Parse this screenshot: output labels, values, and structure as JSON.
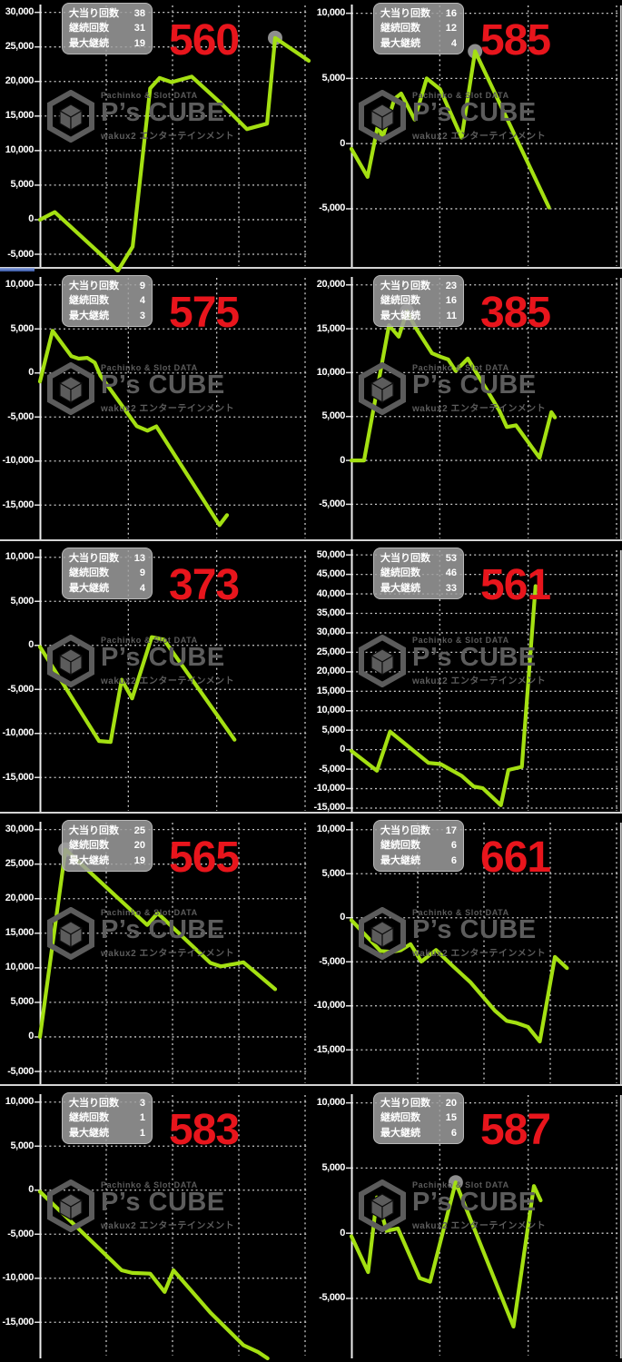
{
  "page": {
    "background": "#000000"
  },
  "watermark": {
    "top": "Pachinko & Slot DATA",
    "brand": "P’s CUBE",
    "sub": "wakux2 エンターテインメント"
  },
  "stats_labels": {
    "jackpot_count": "大当り回数",
    "continuation_count": "継続回数",
    "max_continuation": "最大継続"
  },
  "colors": {
    "line": "#a4e012",
    "machine_number": "#e8151c",
    "grid": "#c8c8c8",
    "axis": "#ededed",
    "marker": "#8e8e8e",
    "watermark": "#5c5c5c",
    "stats_box_bg": "rgba(158,158,158,0.85)",
    "indicator": "#4f6fc0"
  },
  "chart_data": [
    {
      "type": "line",
      "machine_no": "560",
      "stats": {
        "jackpot_count": 38,
        "continuation_count": 31,
        "max_continuation": 19
      },
      "y_axis": {
        "label_max": 30000,
        "label_min": -5000,
        "step": 5000
      },
      "ylim": [
        -7100,
        31000
      ],
      "vgrid_segments": 4,
      "marker_index": 12,
      "points": [
        [
          0.0,
          0
        ],
        [
          0.055,
          1100
        ],
        [
          0.24,
          -5500
        ],
        [
          0.29,
          -7400
        ],
        [
          0.345,
          -3900
        ],
        [
          0.41,
          19000
        ],
        [
          0.445,
          20500
        ],
        [
          0.49,
          19900
        ],
        [
          0.565,
          20700
        ],
        [
          0.68,
          16600
        ],
        [
          0.77,
          13100
        ],
        [
          0.845,
          13900
        ],
        [
          0.875,
          26300
        ],
        [
          1.0,
          23000
        ]
      ]
    },
    {
      "type": "line",
      "machine_no": "585",
      "stats": {
        "jackpot_count": 16,
        "continuation_count": 12,
        "max_continuation": 4
      },
      "y_axis": {
        "label_max": 10000,
        "label_min": -5000,
        "step": 5000
      },
      "ylim": [
        -9600,
        10600
      ],
      "vgrid_segments": 3,
      "marker_index": 10,
      "points": [
        [
          0.0,
          -400
        ],
        [
          0.06,
          -2550
        ],
        [
          0.1,
          1570
        ],
        [
          0.115,
          370
        ],
        [
          0.16,
          3430
        ],
        [
          0.185,
          3840
        ],
        [
          0.235,
          1850
        ],
        [
          0.28,
          5000
        ],
        [
          0.33,
          4170
        ],
        [
          0.41,
          460
        ],
        [
          0.46,
          7080
        ],
        [
          0.735,
          -4900
        ]
      ]
    },
    {
      "type": "line",
      "machine_no": "575",
      "stats": {
        "jackpot_count": 9,
        "continuation_count": 4,
        "max_continuation": 3
      },
      "y_axis": {
        "label_max": 10000,
        "label_min": -15000,
        "step": 5000
      },
      "ylim": [
        -19100,
        10800
      ],
      "vgrid_segments": 3,
      "marker_index": null,
      "points": [
        [
          0.0,
          -970
        ],
        [
          0.047,
          4790
        ],
        [
          0.117,
          1900
        ],
        [
          0.144,
          1620
        ],
        [
          0.176,
          1720
        ],
        [
          0.204,
          1170
        ],
        [
          0.225,
          -300
        ],
        [
          0.36,
          -6040
        ],
        [
          0.4,
          -6550
        ],
        [
          0.433,
          -6070
        ],
        [
          0.668,
          -17280
        ],
        [
          0.696,
          -16140
        ]
      ]
    },
    {
      "type": "line",
      "machine_no": "385",
      "stats": {
        "jackpot_count": 23,
        "continuation_count": 16,
        "max_continuation": 11
      },
      "y_axis": {
        "label_max": 20000,
        "label_min": -5000,
        "step": 5000
      },
      "ylim": [
        -9200,
        20800
      ],
      "vgrid_segments": 3,
      "marker_index": 4,
      "points": [
        [
          0.0,
          0
        ],
        [
          0.047,
          0
        ],
        [
          0.14,
          15400
        ],
        [
          0.176,
          14100
        ],
        [
          0.207,
          17000
        ],
        [
          0.237,
          15200
        ],
        [
          0.3,
          12200
        ],
        [
          0.332,
          11800
        ],
        [
          0.36,
          11500
        ],
        [
          0.388,
          10200
        ],
        [
          0.433,
          11600
        ],
        [
          0.55,
          5700
        ],
        [
          0.578,
          3800
        ],
        [
          0.612,
          4000
        ],
        [
          0.7,
          300
        ],
        [
          0.744,
          5500
        ],
        [
          0.757,
          4900
        ]
      ]
    },
    {
      "type": "line",
      "machine_no": "373",
      "stats": {
        "jackpot_count": 13,
        "continuation_count": 9,
        "max_continuation": 4
      },
      "y_axis": {
        "label_max": 10000,
        "label_min": -15000,
        "step": 5000
      },
      "ylim": [
        -19100,
        10800
      ],
      "vgrid_segments": 3,
      "marker_index": null,
      "points": [
        [
          0.0,
          -170
        ],
        [
          0.22,
          -10860
        ],
        [
          0.263,
          -10960
        ],
        [
          0.304,
          -3900
        ],
        [
          0.343,
          -6030
        ],
        [
          0.416,
          930
        ],
        [
          0.461,
          650
        ],
        [
          0.724,
          -10720
        ]
      ]
    },
    {
      "type": "line",
      "machine_no": "561",
      "stats": {
        "jackpot_count": 53,
        "continuation_count": 46,
        "max_continuation": 33
      },
      "y_axis": {
        "label_max": 50000,
        "label_min": -15000,
        "step": 5000
      },
      "ylim": [
        -16400,
        51200
      ],
      "vgrid_segments": 3,
      "marker_index": null,
      "points": [
        [
          0.0,
          -310
        ],
        [
          0.095,
          -5400
        ],
        [
          0.144,
          4650
        ],
        [
          0.287,
          -3400
        ],
        [
          0.332,
          -3700
        ],
        [
          0.41,
          -6700
        ],
        [
          0.455,
          -9450
        ],
        [
          0.489,
          -9900
        ],
        [
          0.556,
          -14260
        ],
        [
          0.584,
          -5200
        ],
        [
          0.634,
          -4400
        ],
        [
          0.685,
          42000
        ]
      ]
    },
    {
      "type": "line",
      "machine_no": "565",
      "stats": {
        "jackpot_count": 25,
        "continuation_count": 20,
        "max_continuation": 19
      },
      "y_axis": {
        "label_max": 30000,
        "label_min": -5000,
        "step": 5000
      },
      "ylim": [
        -7100,
        31000
      ],
      "vgrid_segments": 4,
      "marker_index": 1,
      "points": [
        [
          0.0,
          0
        ],
        [
          0.095,
          27100
        ],
        [
          0.399,
          16200
        ],
        [
          0.438,
          17900
        ],
        [
          0.634,
          10700
        ],
        [
          0.673,
          10200
        ],
        [
          0.757,
          10800
        ],
        [
          0.875,
          6900
        ]
      ]
    },
    {
      "type": "line",
      "machine_no": "661",
      "stats": {
        "jackpot_count": 17,
        "continuation_count": 6,
        "max_continuation": 6
      },
      "y_axis": {
        "label_max": 10000,
        "label_min": -15000,
        "step": 5000
      },
      "ylim": [
        -19100,
        10800
      ],
      "vgrid_segments": 4,
      "marker_index": null,
      "points": [
        [
          0.0,
          -270
        ],
        [
          0.108,
          -3770
        ],
        [
          0.151,
          -3870
        ],
        [
          0.183,
          -3700
        ],
        [
          0.22,
          -3000
        ],
        [
          0.26,
          -4970
        ],
        [
          0.315,
          -3670
        ],
        [
          0.377,
          -5480
        ],
        [
          0.444,
          -7360
        ],
        [
          0.534,
          -10550
        ],
        [
          0.578,
          -11710
        ],
        [
          0.612,
          -11920
        ],
        [
          0.657,
          -12400
        ],
        [
          0.701,
          -14050
        ],
        [
          0.757,
          -4450
        ],
        [
          0.802,
          -5720
        ]
      ]
    },
    {
      "type": "line",
      "machine_no": "583",
      "stats": {
        "jackpot_count": 3,
        "continuation_count": 1,
        "max_continuation": 1
      },
      "y_axis": {
        "label_max": 10000,
        "label_min": -15000,
        "step": 5000
      },
      "ylim": [
        -19100,
        10800
      ],
      "vgrid_segments": 4,
      "marker_index": null,
      "points": [
        [
          0.0,
          -170
        ],
        [
          0.304,
          -9100
        ],
        [
          0.343,
          -9400
        ],
        [
          0.41,
          -9480
        ],
        [
          0.464,
          -11550
        ],
        [
          0.497,
          -9100
        ],
        [
          0.634,
          -13900
        ],
        [
          0.757,
          -17600
        ],
        [
          0.813,
          -18400
        ],
        [
          0.847,
          -19100
        ]
      ]
    },
    {
      "type": "line",
      "machine_no": "587",
      "stats": {
        "jackpot_count": 20,
        "continuation_count": 15,
        "max_continuation": 6
      },
      "y_axis": {
        "label_max": 10000,
        "label_min": -5000,
        "step": 5000
      },
      "ylim": [
        -9600,
        10600
      ],
      "vgrid_segments": 3,
      "marker_index": 7,
      "points": [
        [
          0.0,
          -230
        ],
        [
          0.062,
          -2980
        ],
        [
          0.095,
          2750
        ],
        [
          0.131,
          180
        ],
        [
          0.173,
          370
        ],
        [
          0.254,
          -3440
        ],
        [
          0.293,
          -3720
        ],
        [
          0.388,
          3900
        ],
        [
          0.603,
          -7160
        ],
        [
          0.679,
          3620
        ],
        [
          0.704,
          2520
        ]
      ]
    }
  ]
}
